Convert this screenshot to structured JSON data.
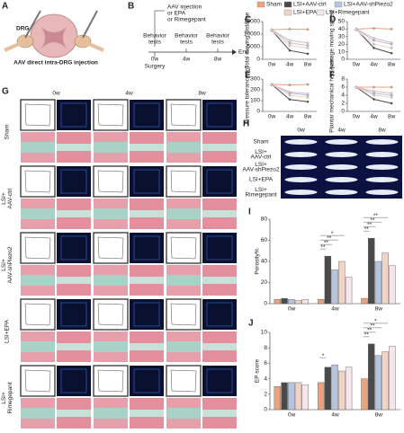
{
  "panel_letters": [
    "A",
    "B",
    "C",
    "D",
    "E",
    "F",
    "G",
    "H",
    "I",
    "J"
  ],
  "panel_a": {
    "drg": "DRG",
    "caption": "AAV direct intra-DRG injection"
  },
  "panel_b": {
    "treatment": [
      "AAV injection",
      "or EPA",
      "or Rimegepant"
    ],
    "tests": [
      [
        "Behavior",
        "tests"
      ],
      [
        "Behavior",
        "tests"
      ],
      [
        "Behavior",
        "tests"
      ]
    ],
    "timepoints": [
      "0w",
      "4w",
      "8w"
    ],
    "surgery": "Surgery",
    "end": "End"
  },
  "panel_g": {
    "columns": [
      "0w",
      "4w",
      "8w"
    ],
    "rows": [
      [
        "Sham"
      ],
      [
        "LSI+",
        "AAV-ctrl"
      ],
      [
        "LSI+",
        "AAV-shPiezo2"
      ],
      [
        "LSI+EPA"
      ],
      [
        "LSI+",
        "Rimegepant"
      ]
    ]
  },
  "panel_h": {
    "columns": [
      "0w",
      "4w",
      "8w"
    ],
    "rows": [
      [
        "Sham"
      ],
      [
        "LSI+",
        "AAV-ctrl"
      ],
      [
        "LSI+",
        "AAV-shPiezo2"
      ],
      [
        "LSI+EPA"
      ],
      [
        "LSI+",
        "Rimegepant"
      ]
    ]
  },
  "chart_data": [
    {
      "type": "line",
      "y_label": "Total moving distance",
      "categories": [
        "0w",
        "4w",
        "8w"
      ],
      "ylim": [
        0,
        15000
      ],
      "yticks": [
        0,
        5000,
        10000,
        15000
      ],
      "series": [
        {
          "name": "Sham",
          "color": "#e9a47e",
          "values": [
            11800,
            12000,
            11900
          ]
        },
        {
          "name": "LSI+AAV-ctrl",
          "color": "#4a4a4a",
          "values": [
            11500,
            3500,
            2200
          ]
        },
        {
          "name": "LSI+AAV-shPiezo2",
          "color": "#b7c4de",
          "values": [
            11600,
            6500,
            5500
          ]
        },
        {
          "name": "LSI+EPA",
          "color": "#f0d4c6",
          "values": [
            11400,
            5500,
            4500
          ]
        },
        {
          "name": "LSI+Rimegepant",
          "color": "#f4e6ea",
          "values": [
            11700,
            7500,
            6500
          ]
        }
      ]
    },
    {
      "type": "line",
      "y_label": "Average moving speed",
      "categories": [
        "0w",
        "4w",
        "8w"
      ],
      "ylim": [
        0,
        50
      ],
      "yticks": [
        0,
        10,
        20,
        30,
        40,
        50
      ],
      "series": [
        {
          "values": [
            40,
            41,
            40
          ]
        },
        {
          "values": [
            40,
            15,
            8
          ]
        },
        {
          "values": [
            40,
            25,
            20
          ]
        },
        {
          "values": [
            39,
            20,
            15
          ]
        },
        {
          "values": [
            40,
            28,
            22
          ]
        }
      ]
    },
    {
      "type": "line",
      "y_label": "Pressure tolerance (g)",
      "categories": [
        "0w",
        "4w",
        "8w"
      ],
      "ylim": [
        0,
        300
      ],
      "yticks": [
        0,
        100,
        200,
        300
      ],
      "series": [
        {
          "values": [
            250,
            245,
            250
          ]
        },
        {
          "values": [
            250,
            110,
            90
          ]
        },
        {
          "values": [
            245,
            170,
            150
          ]
        },
        {
          "values": [
            250,
            150,
            130
          ]
        },
        {
          "values": [
            248,
            180,
            165
          ]
        }
      ]
    },
    {
      "type": "line",
      "y_label": "Plantar mechanical heel pain",
      "categories": [
        "0w",
        "4w",
        "8w"
      ],
      "ylim": [
        0,
        8
      ],
      "yticks": [
        0,
        2,
        4,
        6,
        8
      ],
      "series": [
        {
          "values": [
            6,
            6,
            6
          ]
        },
        {
          "values": [
            6,
            3,
            2
          ]
        },
        {
          "values": [
            6,
            4.5,
            4
          ]
        },
        {
          "values": [
            6,
            4,
            3.5
          ]
        },
        {
          "values": [
            6,
            5,
            4.5
          ]
        }
      ]
    },
    {
      "type": "bar",
      "y_label": "Porosity%",
      "categories": [
        "0w",
        "4w",
        "8w"
      ],
      "ylim": [
        0,
        80
      ],
      "yticks": [
        0,
        20,
        40,
        60,
        80
      ],
      "series": [
        {
          "values": [
            4,
            4,
            5
          ]
        },
        {
          "values": [
            5,
            45,
            62
          ]
        },
        {
          "values": [
            4,
            32,
            40
          ]
        },
        {
          "values": [
            3,
            40,
            48
          ]
        },
        {
          "values": [
            4,
            25,
            36
          ]
        }
      ],
      "annotations": [
        {
          "text": "**",
          "category": 1
        },
        {
          "text": "**",
          "category": 1
        },
        {
          "text": "**",
          "category": 1
        },
        {
          "text": "*",
          "category": 1
        },
        {
          "text": "**",
          "category": 2
        },
        {
          "text": "**",
          "category": 2
        },
        {
          "text": "**",
          "category": 2
        },
        {
          "text": "**",
          "category": 2
        }
      ]
    },
    {
      "type": "bar",
      "y_label": "EP score",
      "categories": [
        "0w",
        "4w",
        "8w"
      ],
      "ylim": [
        0,
        10
      ],
      "yticks": [
        0,
        2,
        4,
        6,
        8,
        10
      ],
      "series": [
        {
          "values": [
            3,
            3.5,
            4
          ]
        },
        {
          "values": [
            3.5,
            5.5,
            8.5
          ]
        },
        {
          "values": [
            3.5,
            5.8,
            7
          ]
        },
        {
          "values": [
            3.5,
            5,
            7.5
          ]
        },
        {
          "values": [
            3.2,
            5.5,
            8.2
          ]
        }
      ],
      "annotations": [
        {
          "text": "*",
          "category": 1
        },
        {
          "text": "**",
          "category": 2
        },
        {
          "text": "**",
          "category": 2
        },
        {
          "text": "**",
          "category": 2
        },
        {
          "text": "*",
          "category": 2
        }
      ]
    }
  ]
}
